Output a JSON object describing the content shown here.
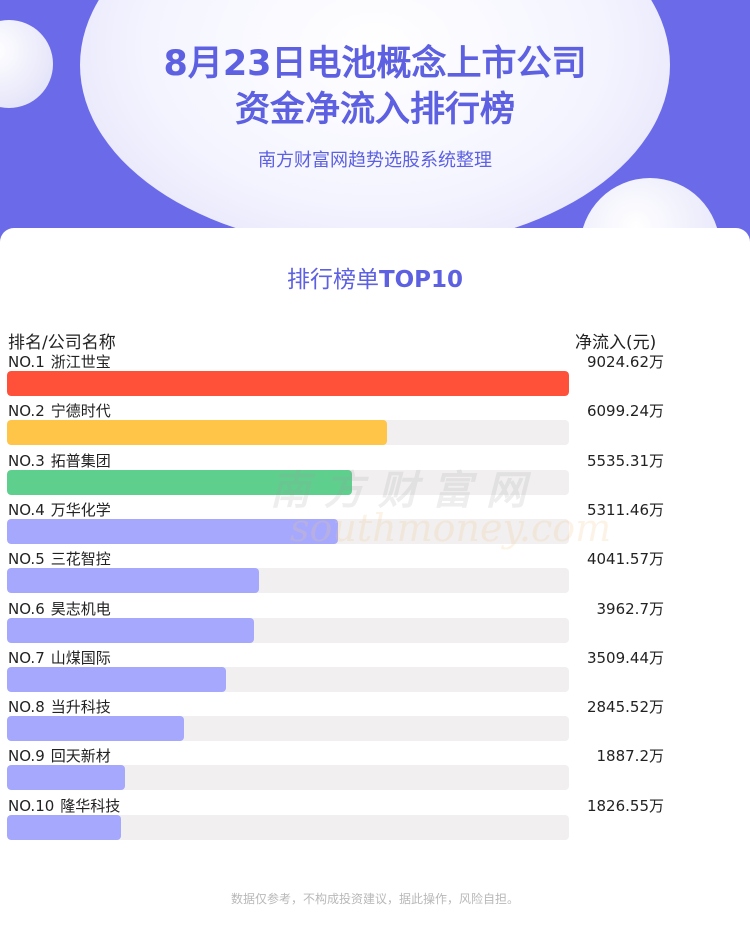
{
  "header": {
    "title_line1": "8月23日电池概念上市公司",
    "title_line2": "资金净流入排行榜",
    "subtitle": "南方财富网趋势选股系统整理"
  },
  "card": {
    "title_prefix": "排行榜单",
    "title_suffix": "TOP10",
    "col_left": "排名/公司名称",
    "col_right": "净流入(元)"
  },
  "watermark": {
    "cn": "南方财富网",
    "en": "southmoney.com"
  },
  "footer": {
    "disclaimer": "数据仅参考，不构成投资建议，据此操作，风险自担。"
  },
  "colors": {
    "bar_rank1": "#ff5139",
    "bar_rank2": "#ffc548",
    "bar_rank3": "#5fcf8e",
    "bar_default": "#a5a8fd",
    "track": "#f1eff0",
    "accent": "#5d60e0"
  },
  "chart_data": {
    "type": "bar",
    "orientation": "horizontal",
    "unit": "万",
    "rows": [
      {
        "rank": "NO.1",
        "name": "浙江世宝",
        "value": 9024.62,
        "label": "9024.62万"
      },
      {
        "rank": "NO.2",
        "name": "宁德时代",
        "value": 6099.24,
        "label": "6099.24万"
      },
      {
        "rank": "NO.3",
        "name": "拓普集团",
        "value": 5535.31,
        "label": "5535.31万"
      },
      {
        "rank": "NO.4",
        "name": "万华化学",
        "value": 5311.46,
        "label": "5311.46万"
      },
      {
        "rank": "NO.5",
        "name": "三花智控",
        "value": 4041.57,
        "label": "4041.57万"
      },
      {
        "rank": "NO.6",
        "name": "昊志机电",
        "value": 3962.7,
        "label": "3962.7万"
      },
      {
        "rank": "NO.7",
        "name": "山煤国际",
        "value": 3509.44,
        "label": "3509.44万"
      },
      {
        "rank": "NO.8",
        "name": "当升科技",
        "value": 2845.52,
        "label": "2845.52万"
      },
      {
        "rank": "NO.9",
        "name": "回天新材",
        "value": 1887.2,
        "label": "1887.2万"
      },
      {
        "rank": "NO.10",
        "name": "隆华科技",
        "value": 1826.55,
        "label": "1826.55万"
      }
    ]
  }
}
